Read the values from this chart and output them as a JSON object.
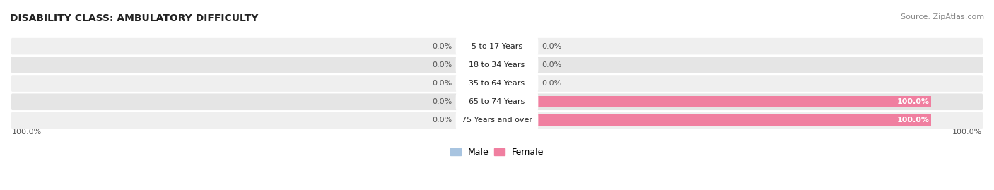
{
  "title": "DISABILITY CLASS: AMBULATORY DIFFICULTY",
  "source": "Source: ZipAtlas.com",
  "categories": [
    "5 to 17 Years",
    "18 to 34 Years",
    "35 to 64 Years",
    "65 to 74 Years",
    "75 Years and over"
  ],
  "male_values": [
    0.0,
    0.0,
    0.0,
    0.0,
    0.0
  ],
  "female_values": [
    0.0,
    0.0,
    0.0,
    100.0,
    100.0
  ],
  "male_color": "#a8c4e0",
  "female_color": "#f07fa0",
  "row_colors": [
    "#efefef",
    "#e5e5e5",
    "#efefef",
    "#e5e5e5",
    "#efefef"
  ],
  "axis_limit": 100.0,
  "label_fontsize": 8,
  "title_fontsize": 10,
  "source_fontsize": 8,
  "legend_fontsize": 9,
  "value_label_color": "#555555",
  "center_label_color": "#222222",
  "fig_width": 14.06,
  "fig_height": 2.69,
  "dpi": 100
}
